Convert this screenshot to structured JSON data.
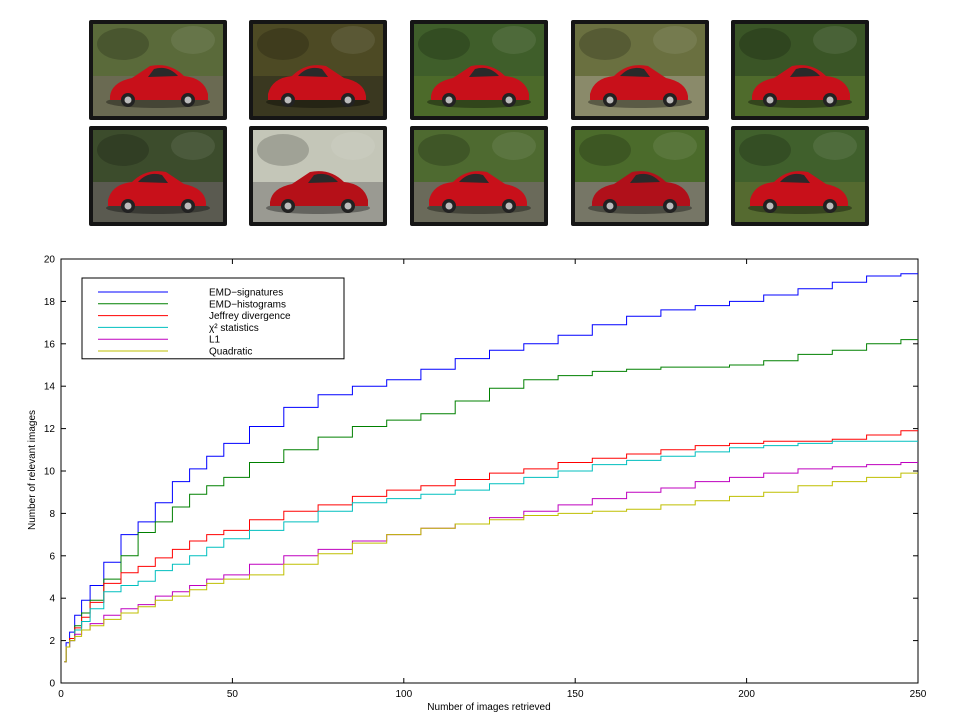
{
  "thumbnails": {
    "description_free": true,
    "items": [
      {
        "name": "car-photo-1",
        "palette": {
          "sky": "#5a6a3a",
          "ground": "#6a6a52",
          "car": "#c8101a"
        }
      },
      {
        "name": "car-photo-2",
        "palette": {
          "sky": "#4d4a24",
          "ground": "#3a3820",
          "car": "#c8101a"
        }
      },
      {
        "name": "car-photo-3",
        "palette": {
          "sky": "#3f5e2a",
          "ground": "#4c6a2a",
          "car": "#c8101a"
        }
      },
      {
        "name": "car-photo-4",
        "palette": {
          "sky": "#6a7040",
          "ground": "#8a8a6a",
          "car": "#c8101a"
        }
      },
      {
        "name": "car-photo-5",
        "palette": {
          "sky": "#3a5526",
          "ground": "#4f6b2c",
          "car": "#c8101a"
        }
      },
      {
        "name": "car-photo-6",
        "palette": {
          "sky": "#3c4c2c",
          "ground": "#5a5a50",
          "car": "#c8101a"
        }
      },
      {
        "name": "car-photo-7",
        "palette": {
          "sky": "#c4c6b8",
          "ground": "#9a9a92",
          "car": "#b51018"
        }
      },
      {
        "name": "car-photo-8",
        "palette": {
          "sky": "#4e6a30",
          "ground": "#6a6a5a",
          "car": "#c8101a"
        }
      },
      {
        "name": "car-photo-9",
        "palette": {
          "sky": "#4b6b2b",
          "ground": "#767666",
          "car": "#b0101a"
        }
      },
      {
        "name": "car-photo-10",
        "palette": {
          "sky": "#40602c",
          "ground": "#556a30",
          "car": "#c8101a"
        }
      }
    ]
  },
  "chart_data": {
    "type": "line",
    "title": "",
    "xlabel": "Number of images retrieved",
    "ylabel": "Number of relevant images",
    "xlim": [
      0,
      250
    ],
    "ylim": [
      0,
      20
    ],
    "xticks": [
      0,
      50,
      100,
      150,
      200,
      250
    ],
    "yticks": [
      0,
      2,
      4,
      6,
      8,
      10,
      12,
      14,
      16,
      18,
      20
    ],
    "grid": false,
    "legend": "top-left",
    "x": [
      1,
      2,
      3,
      5,
      7,
      10,
      15,
      20,
      25,
      30,
      35,
      40,
      45,
      50,
      60,
      70,
      80,
      90,
      100,
      110,
      120,
      130,
      140,
      150,
      160,
      170,
      180,
      190,
      200,
      210,
      220,
      230,
      240,
      250
    ],
    "series": [
      {
        "name": "EMD−signatures",
        "color": "#0000ff",
        "values": [
          1.0,
          1.9,
          2.4,
          3.2,
          3.9,
          4.6,
          5.7,
          7.0,
          7.6,
          8.5,
          9.5,
          10.1,
          10.7,
          11.3,
          12.1,
          13.0,
          13.6,
          14.0,
          14.3,
          14.8,
          15.3,
          15.7,
          16.0,
          16.4,
          16.9,
          17.3,
          17.6,
          17.8,
          18.0,
          18.3,
          18.6,
          18.9,
          19.2,
          19.3
        ]
      },
      {
        "name": "EMD−histograms",
        "color": "#008000",
        "values": [
          1.0,
          1.7,
          2.1,
          2.7,
          3.3,
          3.9,
          4.9,
          6.0,
          7.1,
          7.6,
          8.3,
          8.9,
          9.3,
          9.7,
          10.4,
          11.0,
          11.6,
          12.1,
          12.4,
          12.7,
          13.3,
          13.9,
          14.3,
          14.5,
          14.7,
          14.8,
          14.9,
          14.9,
          15.0,
          15.2,
          15.5,
          15.7,
          16.0,
          16.2
        ]
      },
      {
        "name": "Jeffrey divergence",
        "color": "#ff0000",
        "values": [
          1.0,
          1.7,
          2.1,
          2.6,
          3.1,
          3.8,
          4.7,
          5.2,
          5.5,
          5.9,
          6.3,
          6.7,
          7.0,
          7.2,
          7.7,
          8.1,
          8.4,
          8.8,
          9.1,
          9.3,
          9.6,
          9.9,
          10.1,
          10.4,
          10.6,
          10.8,
          11.0,
          11.2,
          11.3,
          11.4,
          11.4,
          11.5,
          11.7,
          11.9
        ]
      },
      {
        "name": "χ² statistics",
        "color": "#00bfbf",
        "values": [
          1.0,
          1.7,
          2.0,
          2.5,
          2.9,
          3.5,
          4.3,
          4.6,
          4.8,
          5.3,
          5.6,
          6.0,
          6.4,
          6.8,
          7.2,
          7.6,
          8.1,
          8.5,
          8.7,
          8.9,
          9.1,
          9.4,
          9.7,
          10.0,
          10.3,
          10.5,
          10.7,
          10.9,
          11.1,
          11.2,
          11.3,
          11.4,
          11.4,
          11.4
        ]
      },
      {
        "name": "L1",
        "color": "#bf00bf",
        "values": [
          1.0,
          1.7,
          2.0,
          2.3,
          2.5,
          2.8,
          3.2,
          3.5,
          3.7,
          4.1,
          4.3,
          4.6,
          4.9,
          5.1,
          5.6,
          6.0,
          6.3,
          6.7,
          7.0,
          7.3,
          7.5,
          7.8,
          8.1,
          8.4,
          8.7,
          9.0,
          9.2,
          9.5,
          9.7,
          9.9,
          10.1,
          10.2,
          10.3,
          10.4
        ]
      },
      {
        "name": "Quadratic",
        "color": "#bfbf00",
        "values": [
          1.0,
          1.7,
          2.0,
          2.2,
          2.5,
          2.7,
          3.0,
          3.3,
          3.6,
          3.9,
          4.1,
          4.4,
          4.7,
          4.9,
          5.1,
          5.6,
          6.1,
          6.6,
          7.0,
          7.3,
          7.5,
          7.7,
          7.9,
          8.0,
          8.1,
          8.2,
          8.4,
          8.6,
          8.8,
          9.0,
          9.3,
          9.5,
          9.7,
          9.9
        ]
      }
    ]
  }
}
